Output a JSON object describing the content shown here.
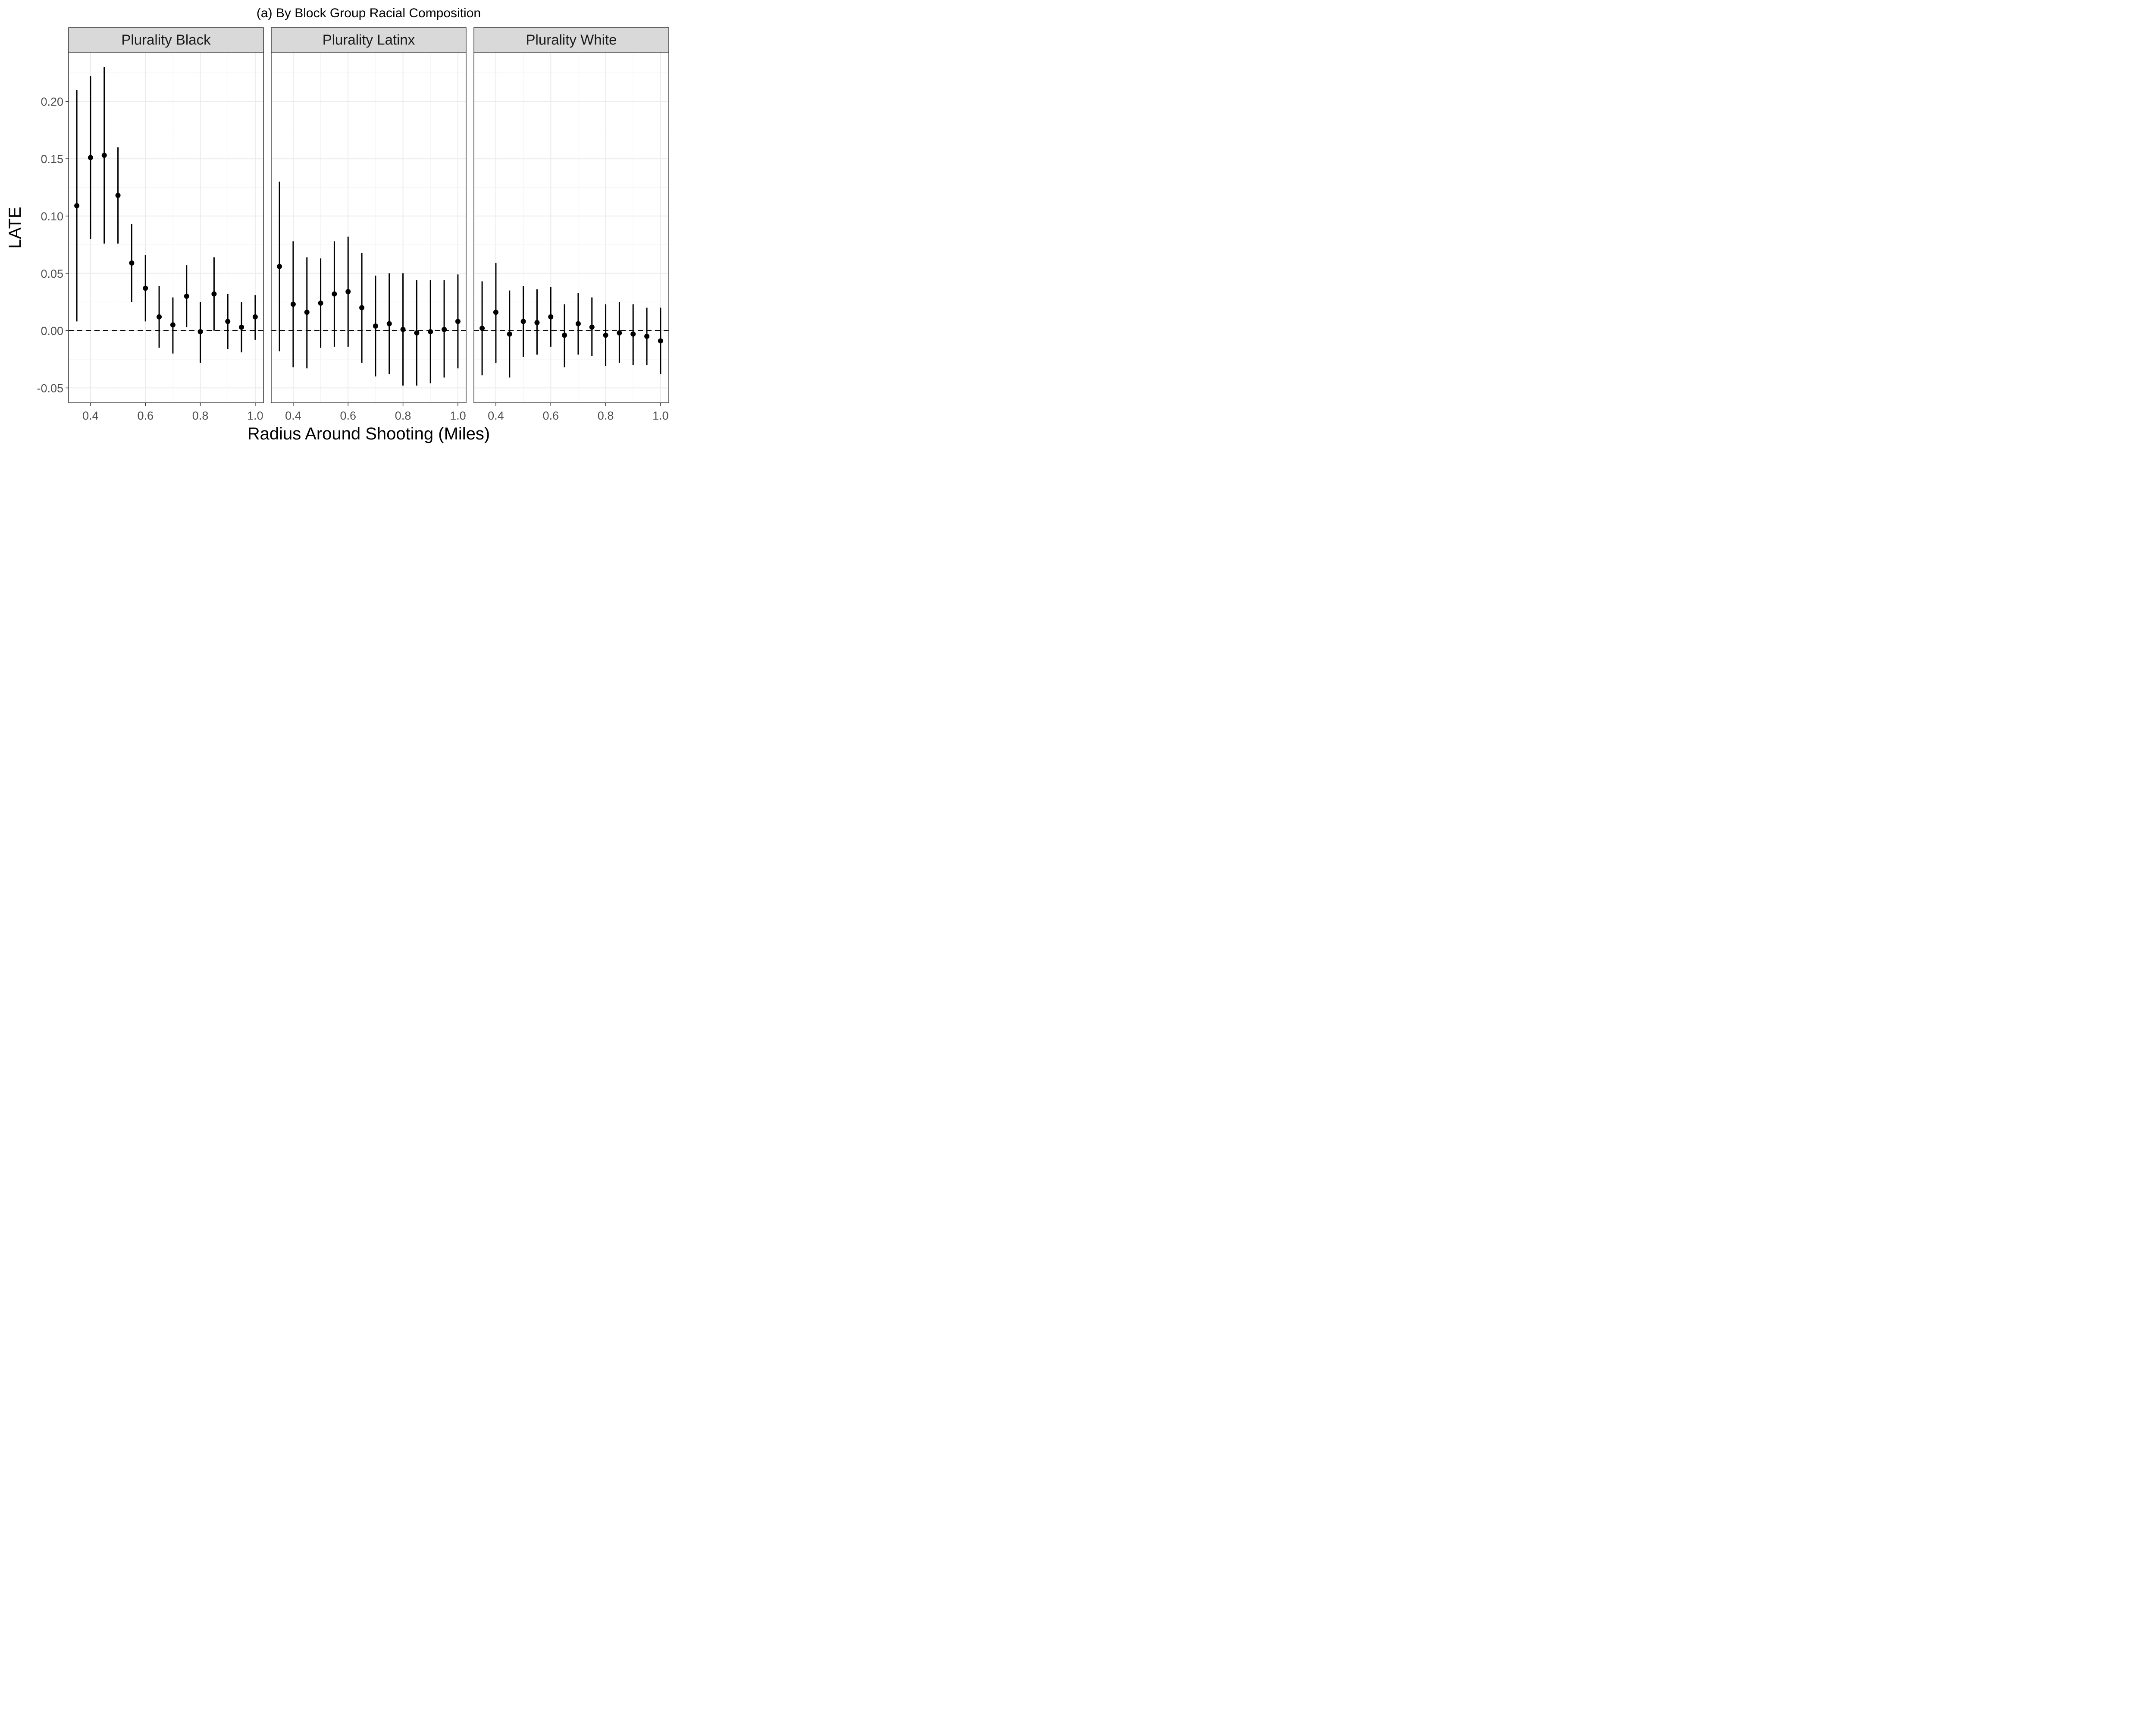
{
  "chart_data": {
    "type": "scatter",
    "subtype": "point-range facets",
    "title": "(a) By Block Group Racial Composition",
    "xlabel": "Radius Around Shooting (Miles)",
    "ylabel": "LATE",
    "x_ticks": [
      "0.4",
      "0.6",
      "0.8",
      "1.0"
    ],
    "y_ticks": [
      "-0.05",
      "0.00",
      "0.05",
      "0.10",
      "0.15",
      "0.20"
    ],
    "y_tick_values": [
      -0.05,
      0.0,
      0.05,
      0.1,
      0.15,
      0.2
    ],
    "x_tick_values": [
      0.4,
      0.6,
      0.8,
      1.0
    ],
    "xlim": [
      0.32,
      1.03
    ],
    "ylim": [
      -0.063,
      0.243
    ],
    "reference_line": 0,
    "grid": true,
    "theme": "bw",
    "colors": {
      "point": "#000000",
      "strip": "#d9d9d9",
      "grid": "#ebebeb",
      "border": "#333333"
    },
    "panels": [
      {
        "name": "Plurality Black",
        "points": [
          {
            "x": 0.35,
            "y": 0.109,
            "lo": 0.008,
            "hi": 0.21
          },
          {
            "x": 0.4,
            "y": 0.151,
            "lo": 0.08,
            "hi": 0.222
          },
          {
            "x": 0.45,
            "y": 0.153,
            "lo": 0.076,
            "hi": 0.23
          },
          {
            "x": 0.5,
            "y": 0.118,
            "lo": 0.076,
            "hi": 0.16
          },
          {
            "x": 0.55,
            "y": 0.059,
            "lo": 0.025,
            "hi": 0.093
          },
          {
            "x": 0.6,
            "y": 0.037,
            "lo": 0.008,
            "hi": 0.066
          },
          {
            "x": 0.65,
            "y": 0.012,
            "lo": -0.015,
            "hi": 0.039
          },
          {
            "x": 0.7,
            "y": 0.005,
            "lo": -0.02,
            "hi": 0.029
          },
          {
            "x": 0.75,
            "y": 0.03,
            "lo": 0.003,
            "hi": 0.057
          },
          {
            "x": 0.8,
            "y": -0.001,
            "lo": -0.028,
            "hi": 0.025
          },
          {
            "x": 0.85,
            "y": 0.032,
            "lo": 0.0,
            "hi": 0.064
          },
          {
            "x": 0.9,
            "y": 0.008,
            "lo": -0.016,
            "hi": 0.032
          },
          {
            "x": 0.95,
            "y": 0.003,
            "lo": -0.019,
            "hi": 0.025
          },
          {
            "x": 1.0,
            "y": 0.012,
            "lo": -0.008,
            "hi": 0.031
          }
        ]
      },
      {
        "name": "Plurality Latinx",
        "points": [
          {
            "x": 0.35,
            "y": 0.056,
            "lo": -0.018,
            "hi": 0.13
          },
          {
            "x": 0.4,
            "y": 0.023,
            "lo": -0.032,
            "hi": 0.078
          },
          {
            "x": 0.45,
            "y": 0.016,
            "lo": -0.033,
            "hi": 0.064
          },
          {
            "x": 0.5,
            "y": 0.024,
            "lo": -0.015,
            "hi": 0.063
          },
          {
            "x": 0.55,
            "y": 0.032,
            "lo": -0.014,
            "hi": 0.078
          },
          {
            "x": 0.6,
            "y": 0.034,
            "lo": -0.014,
            "hi": 0.082
          },
          {
            "x": 0.65,
            "y": 0.02,
            "lo": -0.028,
            "hi": 0.068
          },
          {
            "x": 0.7,
            "y": 0.004,
            "lo": -0.04,
            "hi": 0.048
          },
          {
            "x": 0.75,
            "y": 0.006,
            "lo": -0.038,
            "hi": 0.05
          },
          {
            "x": 0.8,
            "y": 0.001,
            "lo": -0.048,
            "hi": 0.05
          },
          {
            "x": 0.85,
            "y": -0.002,
            "lo": -0.048,
            "hi": 0.044
          },
          {
            "x": 0.9,
            "y": -0.001,
            "lo": -0.046,
            "hi": 0.044
          },
          {
            "x": 0.95,
            "y": 0.001,
            "lo": -0.041,
            "hi": 0.044
          },
          {
            "x": 1.0,
            "y": 0.008,
            "lo": -0.033,
            "hi": 0.049
          }
        ]
      },
      {
        "name": "Plurality White",
        "points": [
          {
            "x": 0.35,
            "y": 0.002,
            "lo": -0.039,
            "hi": 0.043
          },
          {
            "x": 0.4,
            "y": 0.016,
            "lo": -0.028,
            "hi": 0.059
          },
          {
            "x": 0.45,
            "y": -0.003,
            "lo": -0.041,
            "hi": 0.035
          },
          {
            "x": 0.5,
            "y": 0.008,
            "lo": -0.023,
            "hi": 0.039
          },
          {
            "x": 0.55,
            "y": 0.007,
            "lo": -0.021,
            "hi": 0.036
          },
          {
            "x": 0.6,
            "y": 0.012,
            "lo": -0.014,
            "hi": 0.038
          },
          {
            "x": 0.65,
            "y": -0.004,
            "lo": -0.032,
            "hi": 0.023
          },
          {
            "x": 0.7,
            "y": 0.006,
            "lo": -0.021,
            "hi": 0.033
          },
          {
            "x": 0.75,
            "y": 0.003,
            "lo": -0.022,
            "hi": 0.029
          },
          {
            "x": 0.8,
            "y": -0.004,
            "lo": -0.031,
            "hi": 0.023
          },
          {
            "x": 0.85,
            "y": -0.002,
            "lo": -0.028,
            "hi": 0.025
          },
          {
            "x": 0.9,
            "y": -0.003,
            "lo": -0.03,
            "hi": 0.023
          },
          {
            "x": 0.95,
            "y": -0.005,
            "lo": -0.03,
            "hi": 0.02
          },
          {
            "x": 1.0,
            "y": -0.009,
            "lo": -0.038,
            "hi": 0.02
          }
        ]
      }
    ]
  }
}
